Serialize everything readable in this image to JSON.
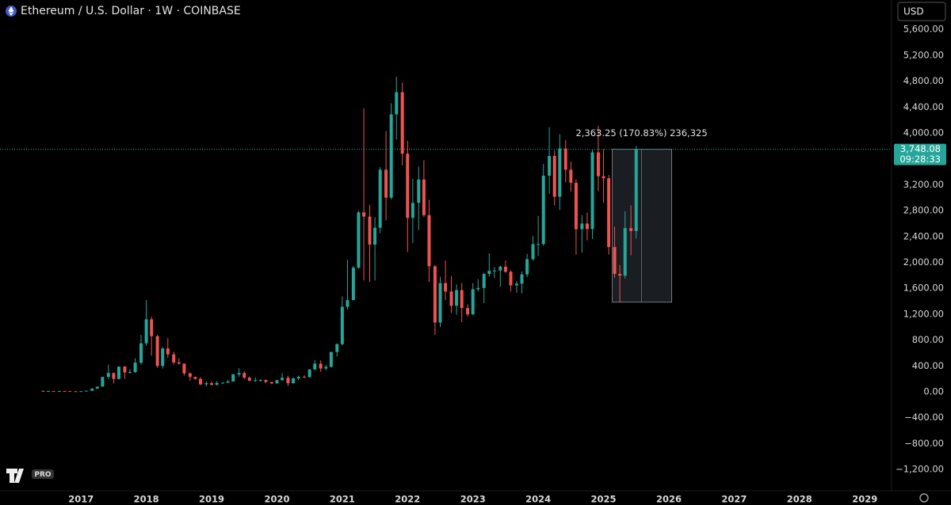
{
  "chart_data": {
    "type": "candlestick",
    "title": "Ethereum / U.S. Dollar · 1W · COINBASE",
    "currency": "USD",
    "measure_label": "2,363.25 (170.83%) 236,325",
    "last_price_label": "3,748.08",
    "countdown": "09:28:33",
    "logo_badge": "PRO",
    "up_color": "#26a69a",
    "down_color": "#ef5350",
    "x": [
      2016.42,
      2016.5,
      2016.58,
      2016.67,
      2016.75,
      2016.83,
      2016.92,
      2017.0,
      2017.08,
      2017.17,
      2017.25,
      2017.33,
      2017.42,
      2017.5,
      2017.58,
      2017.67,
      2017.75,
      2017.83,
      2017.92,
      2018.0,
      2018.08,
      2018.17,
      2018.25,
      2018.33,
      2018.42,
      2018.5,
      2018.58,
      2018.67,
      2018.75,
      2018.83,
      2018.92,
      2019.0,
      2019.08,
      2019.17,
      2019.25,
      2019.33,
      2019.42,
      2019.5,
      2019.58,
      2019.67,
      2019.75,
      2019.83,
      2019.92,
      2020.0,
      2020.08,
      2020.17,
      2020.25,
      2020.33,
      2020.42,
      2020.5,
      2020.58,
      2020.67,
      2020.75,
      2020.83,
      2020.92,
      2021.0,
      2021.08,
      2021.17,
      2021.25,
      2021.33,
      2021.42,
      2021.5,
      2021.58,
      2021.67,
      2021.75,
      2021.83,
      2021.92,
      2022.0,
      2022.08,
      2022.17,
      2022.25,
      2022.33,
      2022.42,
      2022.5,
      2022.58,
      2022.67,
      2022.75,
      2022.83,
      2022.92,
      2023.0,
      2023.08,
      2023.17,
      2023.25,
      2023.33,
      2023.42,
      2023.5,
      2023.58,
      2023.67,
      2023.75,
      2023.83,
      2023.92,
      2024.0,
      2024.08,
      2024.17,
      2024.25,
      2024.33,
      2024.42,
      2024.5,
      2024.58,
      2024.67,
      2024.75,
      2024.83,
      2024.92,
      2025.0,
      2025.08,
      2025.17,
      2025.25,
      2025.33,
      2025.42,
      2025.5
    ],
    "open": [
      14,
      12,
      12,
      11,
      13,
      11,
      9,
      8,
      10,
      16,
      50,
      80,
      230,
      290,
      200,
      390,
      300,
      305,
      450,
      750,
      1120,
      860,
      400,
      670,
      580,
      455,
      435,
      285,
      230,
      200,
      115,
      133,
      107,
      137,
      141,
      160,
      268,
      291,
      218,
      172,
      180,
      183,
      152,
      130,
      180,
      218,
      133,
      207,
      231,
      226,
      345,
      435,
      360,
      386,
      615,
      737,
      1314,
      1417,
      1918,
      2773,
      2707,
      2275,
      2536,
      3433,
      3000,
      4288,
      4630,
      3680,
      2688,
      2920,
      3280,
      2730,
      1940,
      1070,
      1680,
      1550,
      1330,
      1570,
      1295,
      1196,
      1585,
      1605,
      1822,
      1870,
      1875,
      1934,
      1855,
      1645,
      1671,
      1815,
      2050,
      2282,
      2283,
      3340,
      3645,
      3015,
      3760,
      3433,
      3230,
      2513,
      2600,
      2515,
      3700,
      3332,
      3300,
      2237,
      1822,
      1795,
      2530,
      2485
    ],
    "high": [
      21,
      15,
      12,
      14,
      14,
      12,
      9,
      11,
      16,
      55,
      82,
      235,
      420,
      300,
      390,
      400,
      350,
      520,
      880,
      1420,
      1160,
      880,
      690,
      830,
      620,
      515,
      440,
      300,
      235,
      225,
      160,
      160,
      165,
      145,
      185,
      280,
      365,
      320,
      235,
      225,
      198,
      190,
      155,
      185,
      290,
      250,
      227,
      250,
      255,
      350,
      490,
      485,
      415,
      620,
      750,
      1475,
      2040,
      1945,
      2800,
      4380,
      2890,
      2700,
      3470,
      4030,
      4460,
      4870,
      4780,
      3880,
      3290,
      3480,
      3580,
      2970,
      1960,
      1780,
      2030,
      1790,
      1660,
      1680,
      1350,
      1680,
      1740,
      1840,
      2140,
      1930,
      1950,
      2030,
      1880,
      1710,
      1860,
      2130,
      2410,
      2720,
      3520,
      4090,
      3730,
      3980,
      3890,
      3560,
      3280,
      2730,
      2770,
      3740,
      4110,
      3750,
      3350,
      2550,
      1960,
      2790,
      2880,
      3800
    ],
    "low": [
      11,
      10,
      10,
      11,
      10,
      8,
      6,
      8,
      10,
      16,
      46,
      80,
      200,
      130,
      190,
      200,
      280,
      290,
      420,
      710,
      560,
      370,
      360,
      520,
      420,
      425,
      250,
      170,
      190,
      100,
      82,
      100,
      102,
      125,
      136,
      155,
      230,
      195,
      165,
      152,
      155,
      135,
      117,
      127,
      170,
      90,
      125,
      180,
      215,
      223,
      335,
      310,
      335,
      375,
      545,
      715,
      1270,
      1415,
      1900,
      1720,
      1700,
      1720,
      2450,
      2650,
      2970,
      3900,
      3500,
      2160,
      2300,
      2500,
      2700,
      1700,
      880,
      1000,
      1420,
      1220,
      1190,
      1075,
      1165,
      1190,
      1550,
      1370,
      1780,
      1760,
      1620,
      1840,
      1550,
      1530,
      1520,
      1770,
      2030,
      2100,
      2260,
      3060,
      2880,
      2810,
      3240,
      3090,
      2120,
      2150,
      2340,
      2360,
      3100,
      2920,
      2120,
      1760,
      1385,
      1750,
      2110,
      2370
    ],
    "close": [
      12,
      12,
      11,
      13,
      11,
      9,
      8,
      10,
      16,
      50,
      80,
      230,
      290,
      200,
      390,
      300,
      305,
      450,
      750,
      1120,
      860,
      400,
      670,
      580,
      455,
      435,
      285,
      230,
      200,
      115,
      133,
      107,
      137,
      141,
      160,
      268,
      291,
      218,
      172,
      180,
      183,
      152,
      130,
      180,
      218,
      133,
      207,
      231,
      226,
      345,
      435,
      360,
      386,
      615,
      737,
      1314,
      1417,
      1918,
      2773,
      2707,
      2275,
      2536,
      3433,
      3000,
      4288,
      4630,
      3680,
      2688,
      2920,
      3280,
      2730,
      1940,
      1070,
      1680,
      1550,
      1330,
      1570,
      1295,
      1196,
      1585,
      1605,
      1822,
      1870,
      1875,
      1934,
      1855,
      1645,
      1671,
      1815,
      2050,
      2282,
      2283,
      3340,
      3645,
      3015,
      3760,
      3433,
      3230,
      2513,
      2600,
      2515,
      3700,
      3332,
      3300,
      2237,
      1822,
      1795,
      2530,
      2485,
      3748.08
    ],
    "xlim": [
      2015.76,
      2029.41
    ],
    "xticks": [
      2017,
      2018,
      2019,
      2020,
      2021,
      2022,
      2023,
      2024,
      2025,
      2026,
      2027,
      2028,
      2029
    ],
    "ylim": [
      -1529,
      6055
    ],
    "yticks": [
      {
        "value": -1200,
        "label": "−1,200.00"
      },
      {
        "value": -800,
        "label": "−800.00"
      },
      {
        "value": -400,
        "label": "−400.00"
      },
      {
        "value": 0,
        "label": "0.00"
      },
      {
        "value": 400,
        "label": "400.00"
      },
      {
        "value": 800,
        "label": "800.00"
      },
      {
        "value": 1200,
        "label": "1,200.00"
      },
      {
        "value": 1600,
        "label": "1,600.00"
      },
      {
        "value": 2000,
        "label": "2,000.00"
      },
      {
        "value": 2400,
        "label": "2,400.00"
      },
      {
        "value": 2800,
        "label": "2,800.00"
      },
      {
        "value": 3200,
        "label": "3,200.00"
      },
      {
        "value": 4000,
        "label": "4,000.00"
      },
      {
        "value": 4400,
        "label": "4,400.00"
      },
      {
        "value": 4800,
        "label": "4,800.00"
      },
      {
        "value": 5200,
        "label": "5,200.00"
      },
      {
        "value": 5600,
        "label": "5,600.00"
      }
    ],
    "grid": false
  }
}
